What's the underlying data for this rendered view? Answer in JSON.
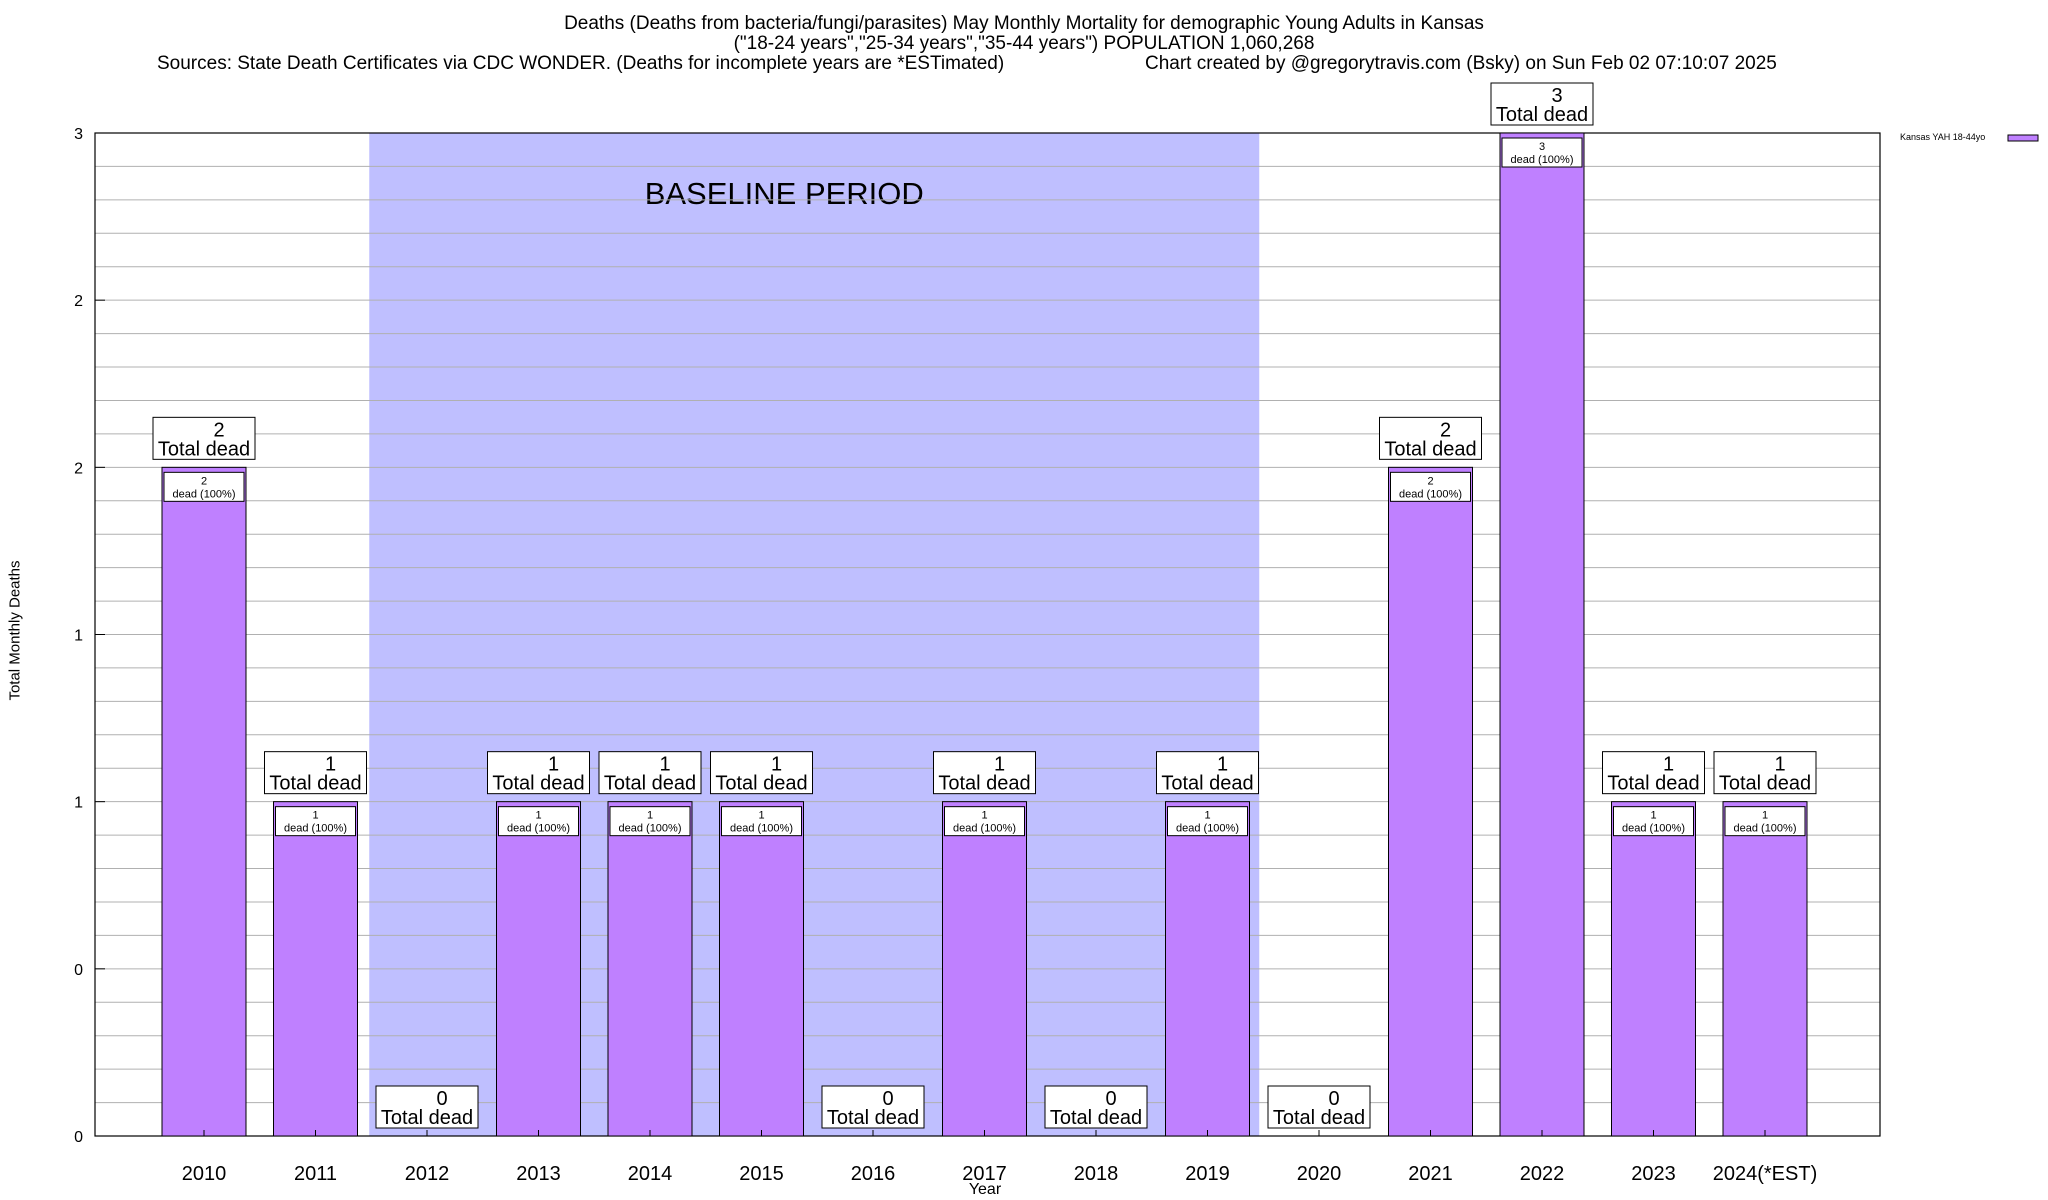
{
  "title_lines": [
    "Deaths (Deaths from bacteria/fungi/parasites) May Monthly Mortality for demographic Young Adults in Kansas",
    "(\"18-24 years\",\"25-34 years\",\"35-44 years\") POPULATION 1,060,268"
  ],
  "source_text": "Sources: State Death Certificates via CDC WONDER. (Deaths for incomplete years are *ESTimated)",
  "credit_text": "Chart created by @gregorytravis.com (Bsky) on Sun Feb 02 07:10:07 2025",
  "colors": {
    "bar": "#bf80ff",
    "baseline": "#bfbfff"
  },
  "chart_data": {
    "type": "bar",
    "title": "Deaths (Deaths from bacteria/fungi/parasites) May Monthly Mortality for demographic Young Adults in Kansas",
    "xlabel": "Year",
    "ylabel": "Total Monthly Deaths",
    "ylim": [
      0,
      3
    ],
    "y_tick_labels": [
      "0",
      "0",
      "1",
      "1",
      "2",
      "2",
      "3"
    ],
    "grid": true,
    "legend_position": "top-right",
    "baseline_label": "BASELINE PERIOD",
    "baseline_range": [
      "2012",
      "2019"
    ],
    "top_label_suffix": "Total dead",
    "inner_label_suffix": "dead (100%)",
    "categories": [
      "2010",
      "2011",
      "2012",
      "2013",
      "2014",
      "2015",
      "2016",
      "2017",
      "2018",
      "2019",
      "2020",
      "2021",
      "2022",
      "2023",
      "2024(*EST)"
    ],
    "series": [
      {
        "name": "Kansas YAH 18-44yo",
        "values": [
          2,
          1,
          0,
          1,
          1,
          1,
          0,
          1,
          0,
          1,
          0,
          2,
          3,
          1,
          1
        ]
      }
    ]
  }
}
